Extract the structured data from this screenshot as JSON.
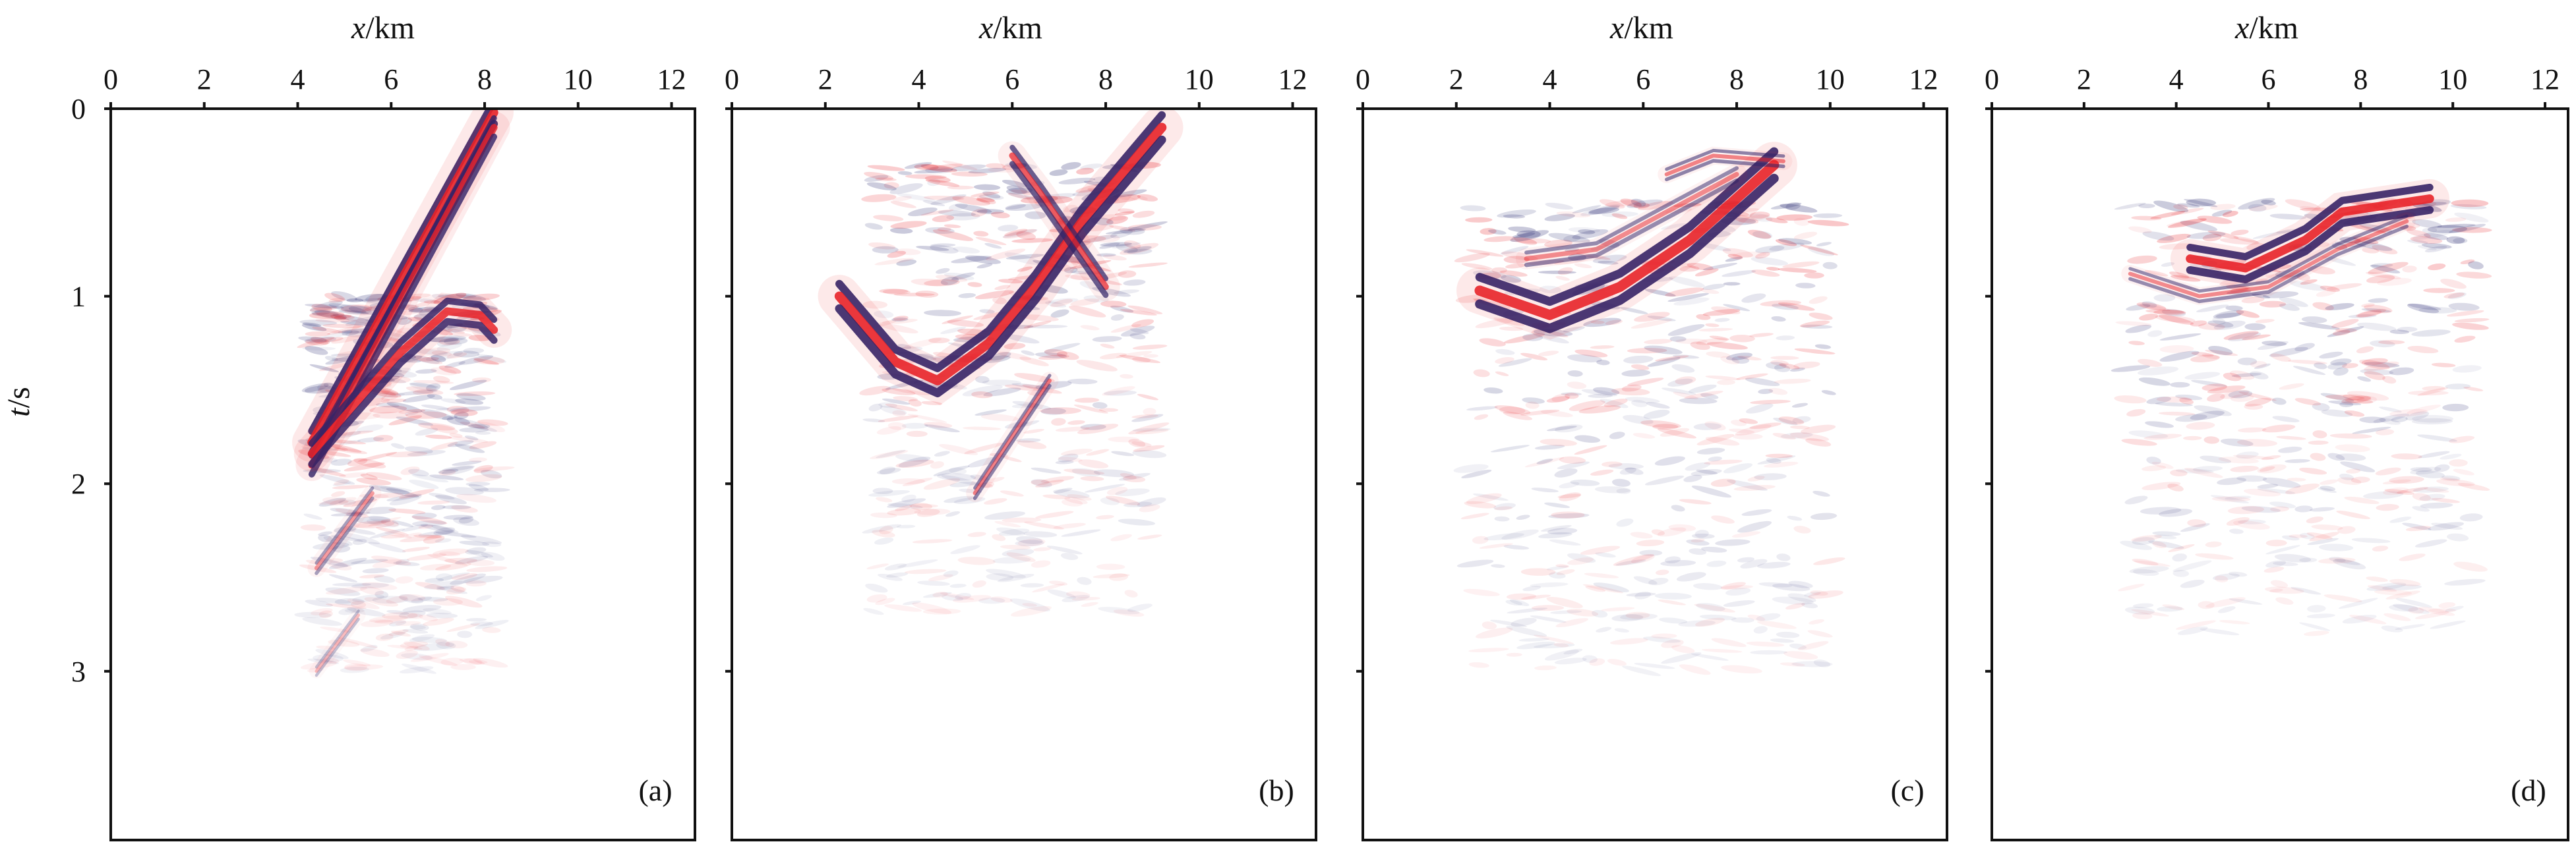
{
  "figure": {
    "colors": {
      "positive": "#e8232a",
      "negative": "#23246e",
      "frame": "#111111",
      "background": "#ffffff"
    }
  },
  "chart_data": [
    {
      "type": "heatmap",
      "panel_label": "(a)",
      "xlabel_var": "x",
      "xlabel_unit": "/km",
      "ylabel_var": "t",
      "ylabel_unit": "/s",
      "xlim": [
        0,
        12.5
      ],
      "ylim": [
        0,
        3.9
      ],
      "x_ticks": [
        "0",
        "2",
        "4",
        "6",
        "8",
        "10",
        "12"
      ],
      "y_ticks": [
        "0",
        "1",
        "2",
        "3"
      ],
      "y_tick_labels_shown": true,
      "events": [
        {
          "kind": "line",
          "points": [
            [
              4.3,
              1.78
            ],
            [
              8.2,
              0.02
            ]
          ],
          "thickness": 0.11,
          "strength": 1.0
        },
        {
          "kind": "line",
          "points": [
            [
              4.3,
              1.9
            ],
            [
              8.2,
              0.1
            ]
          ],
          "thickness": 0.09,
          "strength": 0.9
        },
        {
          "kind": "line",
          "points": [
            [
              4.3,
              1.84
            ],
            [
              6.2,
              1.3
            ],
            [
              7.2,
              1.08
            ],
            [
              7.9,
              1.1
            ],
            [
              8.2,
              1.18
            ]
          ],
          "thickness": 0.1,
          "strength": 0.95
        },
        {
          "kind": "line",
          "points": [
            [
              4.4,
              2.45
            ],
            [
              5.6,
              2.05
            ]
          ],
          "thickness": 0.05,
          "strength": 0.45
        },
        {
          "kind": "line",
          "points": [
            [
              4.4,
              3.0
            ],
            [
              5.3,
              2.7
            ]
          ],
          "thickness": 0.04,
          "strength": 0.3
        }
      ],
      "speckle_region": [
        [
          4.3,
          1.0
        ],
        [
          8.2,
          3.0
        ]
      ]
    },
    {
      "type": "heatmap",
      "panel_label": "(b)",
      "xlabel_var": "x",
      "xlabel_unit": "/km",
      "ylabel_var": "",
      "ylabel_unit": "",
      "xlim": [
        0,
        12.5
      ],
      "ylim": [
        0,
        3.9
      ],
      "x_ticks": [
        "0",
        "2",
        "4",
        "6",
        "8",
        "10",
        "12"
      ],
      "y_ticks": [],
      "y_tick_labels_shown": false,
      "events": [
        {
          "kind": "line",
          "points": [
            [
              2.3,
              1.0
            ],
            [
              3.5,
              1.35
            ],
            [
              4.4,
              1.45
            ],
            [
              5.5,
              1.25
            ],
            [
              6.5,
              0.95
            ],
            [
              7.5,
              0.6
            ],
            [
              9.2,
              0.1
            ]
          ],
          "thickness": 0.12,
          "strength": 1.0
        },
        {
          "kind": "line",
          "points": [
            [
              6.0,
              0.25
            ],
            [
              6.6,
              0.45
            ],
            [
              7.3,
              0.7
            ],
            [
              8.0,
              0.95
            ]
          ],
          "thickness": 0.08,
          "strength": 0.8
        },
        {
          "kind": "line",
          "points": [
            [
              5.2,
              2.05
            ],
            [
              6.8,
              1.45
            ]
          ],
          "thickness": 0.05,
          "strength": 0.6
        }
      ],
      "speckle_region": [
        [
          3.0,
          0.3
        ],
        [
          9.0,
          2.7
        ]
      ]
    },
    {
      "type": "heatmap",
      "panel_label": "(c)",
      "xlabel_var": "x",
      "xlabel_unit": "/km",
      "ylabel_var": "",
      "ylabel_unit": "",
      "xlim": [
        0,
        12.5
      ],
      "ylim": [
        0,
        3.9
      ],
      "x_ticks": [
        "0",
        "2",
        "4",
        "6",
        "8",
        "10",
        "12"
      ],
      "y_ticks": [],
      "y_tick_labels_shown": false,
      "events": [
        {
          "kind": "line",
          "points": [
            [
              2.5,
              0.97
            ],
            [
              4.0,
              1.1
            ],
            [
              5.5,
              0.95
            ],
            [
              7.0,
              0.7
            ],
            [
              8.8,
              0.3
            ]
          ],
          "thickness": 0.13,
          "strength": 1.0
        },
        {
          "kind": "line",
          "points": [
            [
              3.5,
              0.8
            ],
            [
              5.0,
              0.75
            ],
            [
              6.5,
              0.55
            ],
            [
              8.0,
              0.35
            ]
          ],
          "thickness": 0.06,
          "strength": 0.55
        },
        {
          "kind": "line",
          "points": [
            [
              6.5,
              0.35
            ],
            [
              7.5,
              0.25
            ],
            [
              9.0,
              0.28
            ]
          ],
          "thickness": 0.05,
          "strength": 0.6
        }
      ],
      "speckle_region": [
        [
          2.3,
          0.5
        ],
        [
          10.0,
          3.0
        ]
      ]
    },
    {
      "type": "heatmap",
      "panel_label": "(d)",
      "xlabel_var": "x",
      "xlabel_unit": "/km",
      "ylabel_var": "",
      "ylabel_unit": "",
      "xlim": [
        0,
        12.5
      ],
      "ylim": [
        0,
        3.9
      ],
      "x_ticks": [
        "0",
        "2",
        "4",
        "6",
        "8",
        "10",
        "12"
      ],
      "y_ticks": [],
      "y_tick_labels_shown": false,
      "events": [
        {
          "kind": "line",
          "points": [
            [
              4.3,
              0.8
            ],
            [
              5.5,
              0.85
            ],
            [
              6.8,
              0.7
            ],
            [
              7.6,
              0.55
            ],
            [
              9.5,
              0.48
            ]
          ],
          "thickness": 0.11,
          "strength": 1.0
        },
        {
          "kind": "line",
          "points": [
            [
              3.0,
              0.88
            ],
            [
              4.5,
              1.0
            ],
            [
              6.0,
              0.95
            ],
            [
              7.5,
              0.75
            ],
            [
              9.0,
              0.6
            ]
          ],
          "thickness": 0.05,
          "strength": 0.55
        }
      ],
      "speckle_region": [
        [
          3.0,
          0.5
        ],
        [
          10.5,
          2.8
        ]
      ]
    }
  ]
}
